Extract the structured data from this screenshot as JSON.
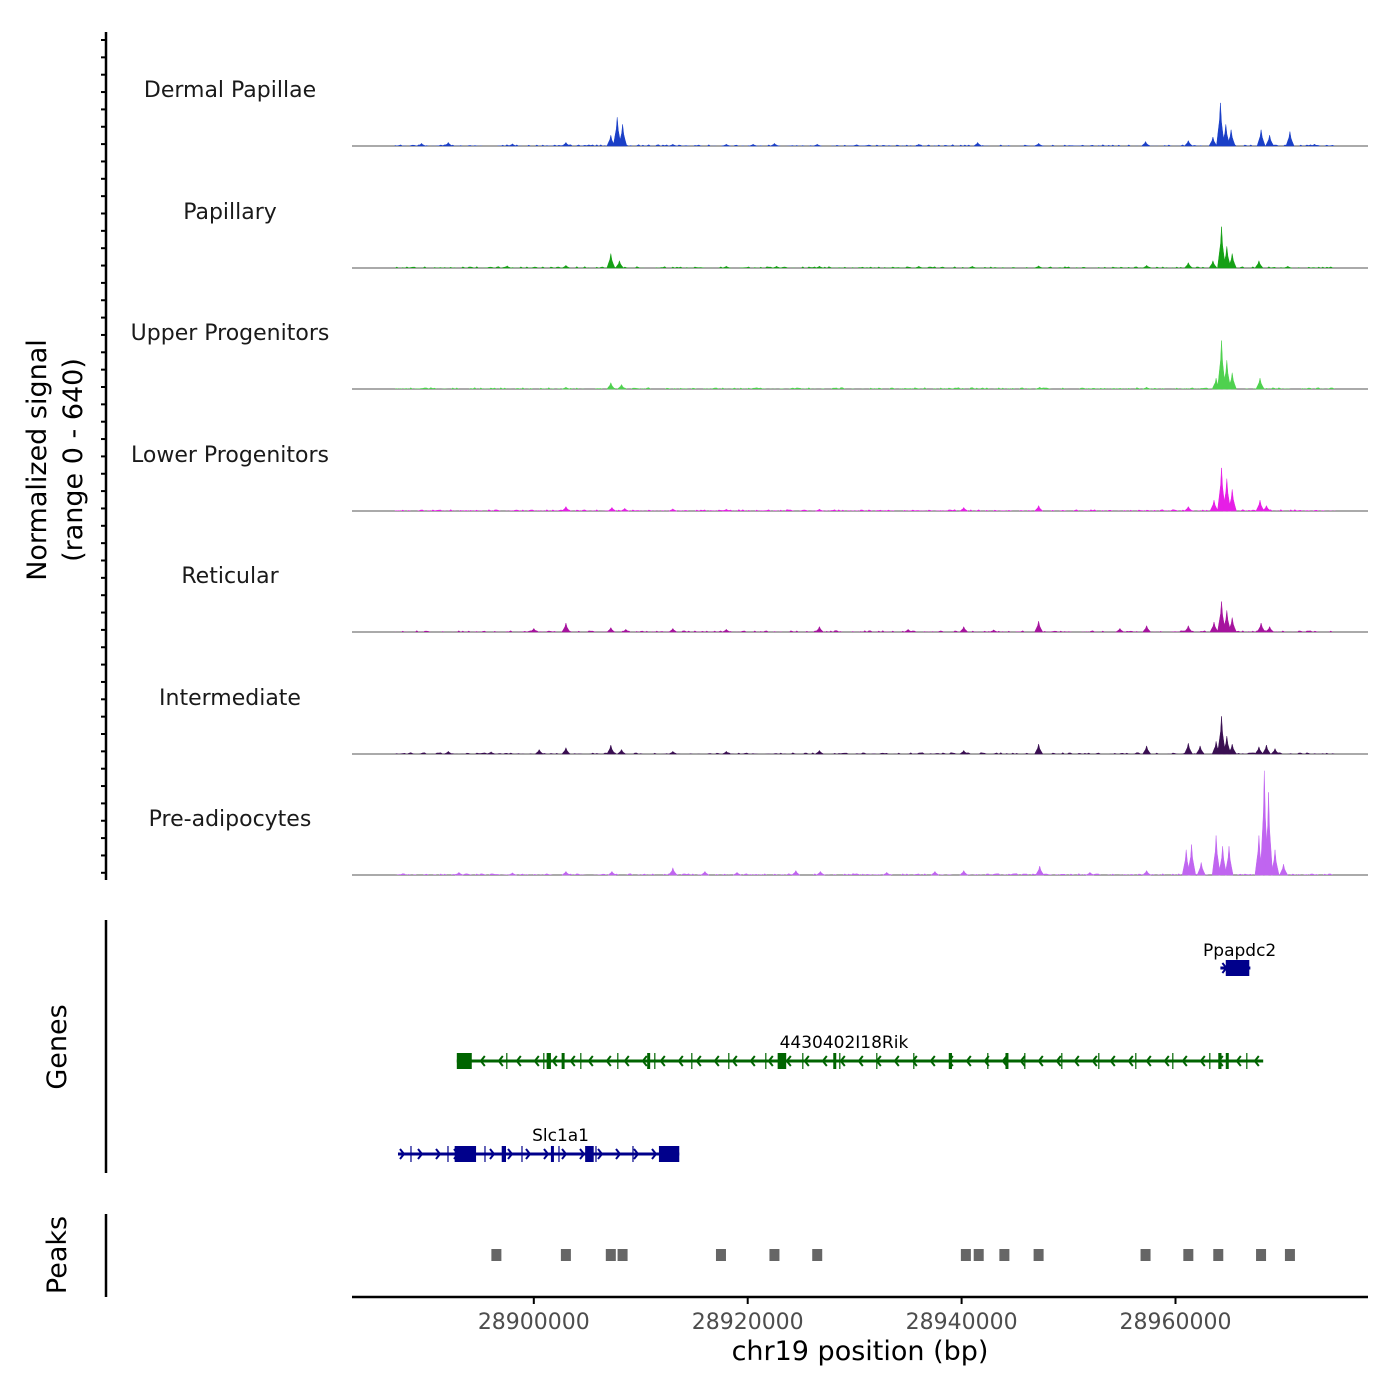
{
  "y_axis": {
    "line1": "Normalized signal",
    "line2": "(range 0 - 640)"
  },
  "genes_label": "Genes",
  "peaks_label": "Peaks",
  "colors": {
    "Dermal Papillae": "#1a3fc7",
    "Papillary": "#15a015",
    "Upper Progenitors": "#4fd14f",
    "Lower Progenitors": "#e61ee6",
    "Reticular": "#a6139e",
    "Intermediate": "#3a0f52",
    "Pre-adipocytes": "#c065f0",
    "gene_forward": "#00008b",
    "gene_reverse": "#006400",
    "peak": "#666666"
  },
  "chart_data": {
    "type": "area",
    "title": "",
    "xlabel": "chr19 position (bp)",
    "ylabel": "Normalized signal (range 0 - 640)",
    "xlim": [
      28883000,
      28978000
    ],
    "ylim": [
      0,
      640
    ],
    "x_ticks": [
      28900000,
      28920000,
      28940000,
      28960000
    ],
    "x_tick_labels": [
      "28900000",
      "28920000",
      "28940000",
      "28960000"
    ],
    "tracks": [
      {
        "name": "Dermal Papillae",
        "peaks": [
          [
            28889500,
            15
          ],
          [
            28892000,
            20
          ],
          [
            28898000,
            12
          ],
          [
            28903000,
            20
          ],
          [
            28907200,
            60
          ],
          [
            28907800,
            160
          ],
          [
            28908300,
            120
          ],
          [
            28913000,
            10
          ],
          [
            28918000,
            10
          ],
          [
            28920500,
            10
          ],
          [
            28922500,
            15
          ],
          [
            28926500,
            10
          ],
          [
            28936000,
            10
          ],
          [
            28941500,
            20
          ],
          [
            28947200,
            15
          ],
          [
            28957200,
            25
          ],
          [
            28961200,
            30
          ],
          [
            28963500,
            50
          ],
          [
            28964200,
            240
          ],
          [
            28964700,
            120
          ],
          [
            28965200,
            90
          ],
          [
            28968000,
            90
          ],
          [
            28968800,
            60
          ],
          [
            28970700,
            80
          ],
          [
            28973000,
            10
          ]
        ]
      },
      {
        "name": "Papillary",
        "peaks": [
          [
            28897500,
            12
          ],
          [
            28903000,
            15
          ],
          [
            28907200,
            80
          ],
          [
            28908000,
            40
          ],
          [
            28918000,
            10
          ],
          [
            28922700,
            10
          ],
          [
            28926700,
            10
          ],
          [
            28936000,
            10
          ],
          [
            28941000,
            10
          ],
          [
            28947200,
            12
          ],
          [
            28957300,
            15
          ],
          [
            28961200,
            30
          ],
          [
            28963500,
            40
          ],
          [
            28964300,
            230
          ],
          [
            28964800,
            120
          ],
          [
            28965300,
            80
          ],
          [
            28967800,
            40
          ],
          [
            28970500,
            10
          ]
        ]
      },
      {
        "name": "Upper Progenitors",
        "peaks": [
          [
            28903000,
            10
          ],
          [
            28907200,
            35
          ],
          [
            28908200,
            25
          ],
          [
            28947300,
            10
          ],
          [
            28957300,
            10
          ],
          [
            28963800,
            60
          ],
          [
            28964300,
            270
          ],
          [
            28964800,
            160
          ],
          [
            28965300,
            90
          ],
          [
            28967900,
            60
          ]
        ]
      },
      {
        "name": "Lower Progenitors",
        "peaks": [
          [
            28903000,
            25
          ],
          [
            28907300,
            20
          ],
          [
            28908500,
            15
          ],
          [
            28913000,
            12
          ],
          [
            28918000,
            10
          ],
          [
            28926700,
            10
          ],
          [
            28940200,
            20
          ],
          [
            28947200,
            30
          ],
          [
            28961200,
            25
          ],
          [
            28963600,
            60
          ],
          [
            28964300,
            240
          ],
          [
            28964800,
            180
          ],
          [
            28965300,
            120
          ],
          [
            28967900,
            60
          ],
          [
            28968500,
            30
          ]
        ]
      },
      {
        "name": "Reticular",
        "peaks": [
          [
            28900000,
            20
          ],
          [
            28903000,
            50
          ],
          [
            28907200,
            25
          ],
          [
            28908600,
            15
          ],
          [
            28913000,
            20
          ],
          [
            28918000,
            15
          ],
          [
            28926700,
            30
          ],
          [
            28935000,
            15
          ],
          [
            28940200,
            30
          ],
          [
            28943000,
            12
          ],
          [
            28947200,
            60
          ],
          [
            28954800,
            20
          ],
          [
            28957300,
            35
          ],
          [
            28961200,
            35
          ],
          [
            28963600,
            55
          ],
          [
            28964300,
            170
          ],
          [
            28964800,
            120
          ],
          [
            28965300,
            80
          ],
          [
            28968000,
            50
          ],
          [
            28968800,
            30
          ]
        ]
      },
      {
        "name": "Intermediate",
        "peaks": [
          [
            28892000,
            15
          ],
          [
            28896000,
            12
          ],
          [
            28900500,
            25
          ],
          [
            28903000,
            35
          ],
          [
            28907200,
            50
          ],
          [
            28908200,
            25
          ],
          [
            28913000,
            15
          ],
          [
            28918000,
            15
          ],
          [
            28926700,
            20
          ],
          [
            28940200,
            20
          ],
          [
            28947200,
            55
          ],
          [
            28957300,
            45
          ],
          [
            28961200,
            60
          ],
          [
            28962300,
            45
          ],
          [
            28963800,
            70
          ],
          [
            28964300,
            210
          ],
          [
            28964800,
            100
          ],
          [
            28965300,
            55
          ],
          [
            28967800,
            40
          ],
          [
            28968500,
            50
          ],
          [
            28969300,
            30
          ]
        ]
      },
      {
        "name": "Pre-adipocytes",
        "peaks": [
          [
            28893000,
            15
          ],
          [
            28898000,
            12
          ],
          [
            28903000,
            20
          ],
          [
            28907300,
            20
          ],
          [
            28913000,
            40
          ],
          [
            28916000,
            20
          ],
          [
            28919000,
            15
          ],
          [
            28924500,
            25
          ],
          [
            28926800,
            20
          ],
          [
            28933000,
            15
          ],
          [
            28937500,
            20
          ],
          [
            28940200,
            25
          ],
          [
            28947300,
            50
          ],
          [
            28952000,
            15
          ],
          [
            28957300,
            25
          ],
          [
            28961000,
            140
          ],
          [
            28961500,
            170
          ],
          [
            28962400,
            70
          ],
          [
            28963800,
            220
          ],
          [
            28964400,
            160
          ],
          [
            28965000,
            160
          ],
          [
            28967800,
            220
          ],
          [
            28968300,
            580
          ],
          [
            28968700,
            460
          ],
          [
            28969300,
            140
          ],
          [
            28970100,
            60
          ]
        ]
      }
    ],
    "genes": [
      {
        "name": "Ppapdc2",
        "strand": "+",
        "start": 28964200,
        "end": 28967000,
        "exons": [
          [
            28964700,
            28966900
          ]
        ]
      },
      {
        "name": "4430402I18Rik",
        "strand": "-",
        "start": 28892800,
        "end": 28968200,
        "exons": [
          [
            28892800,
            28894200
          ],
          [
            28901200,
            28901600
          ],
          [
            28902600,
            28902800
          ],
          [
            28910600,
            28910800
          ],
          [
            28922800,
            28923600
          ],
          [
            28928000,
            28928200
          ],
          [
            28938800,
            28939100
          ],
          [
            28944100,
            28944300
          ],
          [
            28964000,
            28964300
          ],
          [
            28964700,
            28964900
          ]
        ]
      },
      {
        "name": "Slc1a1",
        "strand": "+",
        "start": 28887300,
        "end": 28913600,
        "exons": [
          [
            28892600,
            28894600
          ],
          [
            28897000,
            28897400
          ],
          [
            28901600,
            28901800
          ],
          [
            28904800,
            28905600
          ],
          [
            28911700,
            28913600
          ]
        ]
      }
    ],
    "peaks": [
      28896500,
      28903000,
      28907200,
      28908300,
      28917500,
      28922500,
      28926500,
      28940400,
      28941600,
      28944000,
      28947200,
      28957200,
      28961200,
      28964000,
      28968000,
      28970700
    ]
  }
}
